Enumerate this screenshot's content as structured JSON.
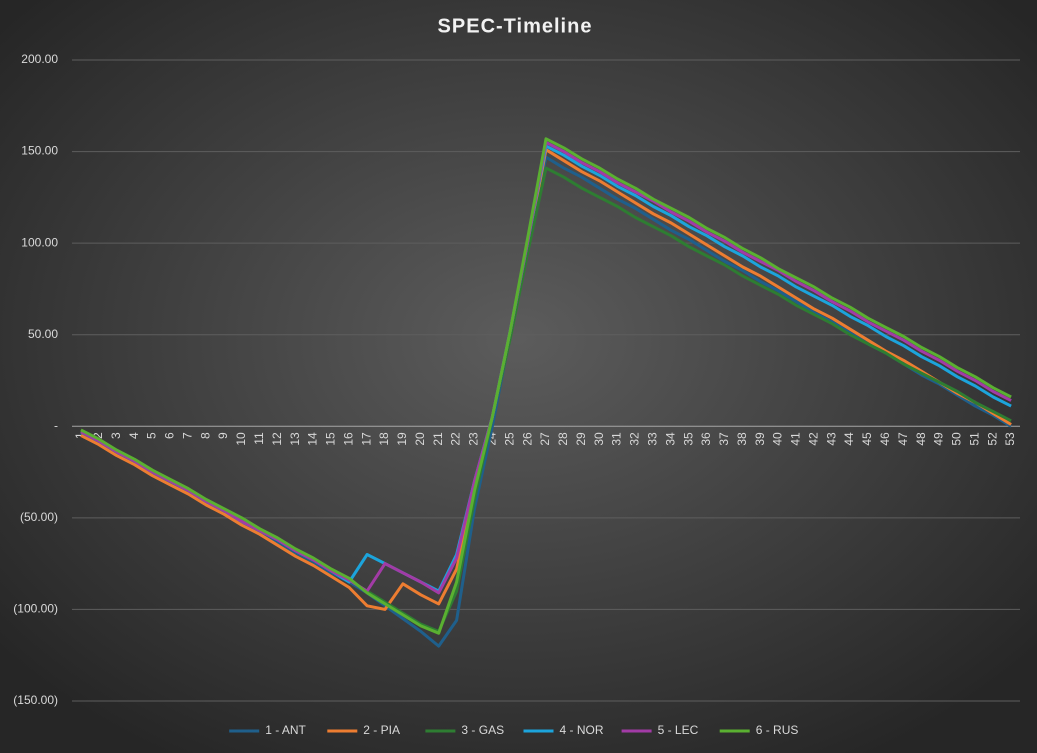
{
  "chart_data": {
    "type": "line",
    "title": "SPEC-Timeline",
    "categories": [
      "1",
      "2",
      "3",
      "4",
      "5",
      "6",
      "7",
      "8",
      "9",
      "10",
      "11",
      "12",
      "13",
      "14",
      "15",
      "16",
      "17",
      "18",
      "19",
      "20",
      "21",
      "22",
      "23",
      "24",
      "25",
      "26",
      "27",
      "28",
      "29",
      "30",
      "31",
      "32",
      "33",
      "34",
      "35",
      "36",
      "37",
      "38",
      "39",
      "40",
      "41",
      "42",
      "43",
      "44",
      "45",
      "46",
      "47",
      "48",
      "49",
      "50",
      "51",
      "52",
      "53"
    ],
    "series": [
      {
        "name": "1 - ANT",
        "color": "#1f5f8b",
        "values": [
          -4,
          -9,
          -15,
          -20,
          -26,
          -31,
          -36,
          -42,
          -47,
          -53,
          -58,
          -63,
          -69,
          -74,
          -80,
          -85,
          -91,
          -98,
          -105,
          -112,
          -120,
          -106,
          -45,
          0,
          50,
          100,
          147,
          141,
          136,
          130,
          124,
          119,
          113,
          107,
          102,
          96,
          90,
          85,
          79,
          74,
          68,
          62,
          57,
          51,
          45,
          40,
          34,
          28,
          23,
          17,
          11,
          6,
          0
        ]
      },
      {
        "name": "2 - PIA",
        "color": "#ed7d31",
        "values": [
          -5,
          -10,
          -16,
          -21,
          -27,
          -32,
          -37,
          -43,
          -48,
          -54,
          -59,
          -65,
          -71,
          -76,
          -82,
          -88,
          -98,
          -100,
          -86,
          -92,
          -97,
          -78,
          -35,
          5,
          50,
          100,
          151,
          145,
          139,
          134,
          128,
          122,
          116,
          111,
          105,
          99,
          93,
          87,
          82,
          76,
          70,
          64,
          59,
          53,
          47,
          41,
          36,
          30,
          24,
          18,
          13,
          7,
          1
        ]
      },
      {
        "name": "3 - GAS",
        "color": "#2e7d32",
        "values": [
          -3,
          -8,
          -14,
          -19,
          -25,
          -30,
          -35,
          -41,
          -46,
          -52,
          -57,
          -62,
          -68,
          -73,
          -79,
          -84,
          -90,
          -96,
          -102,
          -108,
          -112,
          -90,
          -40,
          5,
          48,
          96,
          141,
          136,
          130,
          125,
          120,
          114,
          109,
          104,
          98,
          93,
          88,
          82,
          77,
          72,
          66,
          61,
          56,
          50,
          45,
          40,
          34,
          29,
          24,
          19,
          13,
          8,
          3
        ]
      },
      {
        "name": "4 - NOR",
        "color": "#1ca4dc",
        "values": [
          -3,
          -8,
          -14,
          -19,
          -25,
          -30,
          -35,
          -41,
          -46,
          -52,
          -57,
          -62,
          -68,
          -73,
          -79,
          -85,
          -70,
          -75,
          -80,
          -85,
          -90,
          -70,
          -30,
          5,
          52,
          102,
          153,
          148,
          142,
          137,
          131,
          126,
          120,
          115,
          109,
          104,
          98,
          93,
          87,
          82,
          76,
          71,
          66,
          60,
          55,
          49,
          44,
          38,
          33,
          27,
          22,
          16,
          11
        ]
      },
      {
        "name": "5 - LEC",
        "color": "#a23ba6",
        "values": [
          -3,
          -8,
          -14,
          -19,
          -25,
          -30,
          -35,
          -41,
          -46,
          -52,
          -57,
          -62,
          -68,
          -73,
          -79,
          -84,
          -90,
          -75,
          -80,
          -85,
          -91,
          -72,
          -30,
          5,
          52,
          102,
          155,
          150,
          144,
          139,
          133,
          128,
          123,
          117,
          112,
          106,
          101,
          95,
          90,
          85,
          79,
          74,
          68,
          63,
          57,
          52,
          47,
          41,
          36,
          30,
          25,
          19,
          14
        ]
      },
      {
        "name": "6 - RUS",
        "color": "#5ab031",
        "values": [
          -2,
          -7,
          -13,
          -18,
          -24,
          -29,
          -34,
          -40,
          -45,
          -50,
          -56,
          -61,
          -67,
          -72,
          -78,
          -83,
          -91,
          -97,
          -103,
          -109,
          -113,
          -85,
          -35,
          5,
          52,
          104,
          157,
          152,
          146,
          141,
          135,
          130,
          124,
          119,
          114,
          108,
          103,
          97,
          92,
          86,
          81,
          76,
          70,
          65,
          59,
          54,
          49,
          43,
          38,
          32,
          27,
          21,
          16
        ]
      }
    ],
    "ylim": [
      -150,
      200
    ],
    "yticks": [
      {
        "value": -150,
        "label": "(150.00)"
      },
      {
        "value": -100,
        "label": "(100.00)"
      },
      {
        "value": -50,
        "label": "(50.00)"
      },
      {
        "value": 0,
        "label": "-"
      },
      {
        "value": 50,
        "label": "50.00"
      },
      {
        "value": 100,
        "label": "100.00"
      },
      {
        "value": 150,
        "label": "150.00"
      },
      {
        "value": 200,
        "label": "200.00"
      }
    ],
    "grid": true,
    "legend": "bottom"
  }
}
